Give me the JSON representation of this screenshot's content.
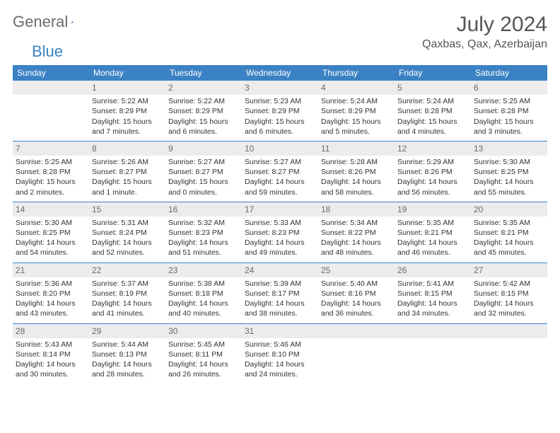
{
  "logo": {
    "general": "General",
    "blue": "Blue"
  },
  "title": "July 2024",
  "location": "Qaxbas, Qax, Azerbaijan",
  "colors": {
    "accent": "#3b82c4",
    "header_text": "#ffffff",
    "daynum_bg": "#ececec",
    "text": "#333333",
    "title_text": "#565656",
    "logo_gray": "#6b6b6b"
  },
  "day_headers": [
    "Sunday",
    "Monday",
    "Tuesday",
    "Wednesday",
    "Thursday",
    "Friday",
    "Saturday"
  ],
  "weeks": [
    [
      {
        "n": "",
        "lines": []
      },
      {
        "n": "1",
        "lines": [
          "Sunrise: 5:22 AM",
          "Sunset: 8:29 PM",
          "Daylight: 15 hours",
          "and 7 minutes."
        ]
      },
      {
        "n": "2",
        "lines": [
          "Sunrise: 5:22 AM",
          "Sunset: 8:29 PM",
          "Daylight: 15 hours",
          "and 6 minutes."
        ]
      },
      {
        "n": "3",
        "lines": [
          "Sunrise: 5:23 AM",
          "Sunset: 8:29 PM",
          "Daylight: 15 hours",
          "and 6 minutes."
        ]
      },
      {
        "n": "4",
        "lines": [
          "Sunrise: 5:24 AM",
          "Sunset: 8:29 PM",
          "Daylight: 15 hours",
          "and 5 minutes."
        ]
      },
      {
        "n": "5",
        "lines": [
          "Sunrise: 5:24 AM",
          "Sunset: 8:28 PM",
          "Daylight: 15 hours",
          "and 4 minutes."
        ]
      },
      {
        "n": "6",
        "lines": [
          "Sunrise: 5:25 AM",
          "Sunset: 8:28 PM",
          "Daylight: 15 hours",
          "and 3 minutes."
        ]
      }
    ],
    [
      {
        "n": "7",
        "lines": [
          "Sunrise: 5:25 AM",
          "Sunset: 8:28 PM",
          "Daylight: 15 hours",
          "and 2 minutes."
        ]
      },
      {
        "n": "8",
        "lines": [
          "Sunrise: 5:26 AM",
          "Sunset: 8:27 PM",
          "Daylight: 15 hours",
          "and 1 minute."
        ]
      },
      {
        "n": "9",
        "lines": [
          "Sunrise: 5:27 AM",
          "Sunset: 8:27 PM",
          "Daylight: 15 hours",
          "and 0 minutes."
        ]
      },
      {
        "n": "10",
        "lines": [
          "Sunrise: 5:27 AM",
          "Sunset: 8:27 PM",
          "Daylight: 14 hours",
          "and 59 minutes."
        ]
      },
      {
        "n": "11",
        "lines": [
          "Sunrise: 5:28 AM",
          "Sunset: 8:26 PM",
          "Daylight: 14 hours",
          "and 58 minutes."
        ]
      },
      {
        "n": "12",
        "lines": [
          "Sunrise: 5:29 AM",
          "Sunset: 8:26 PM",
          "Daylight: 14 hours",
          "and 56 minutes."
        ]
      },
      {
        "n": "13",
        "lines": [
          "Sunrise: 5:30 AM",
          "Sunset: 8:25 PM",
          "Daylight: 14 hours",
          "and 55 minutes."
        ]
      }
    ],
    [
      {
        "n": "14",
        "lines": [
          "Sunrise: 5:30 AM",
          "Sunset: 8:25 PM",
          "Daylight: 14 hours",
          "and 54 minutes."
        ]
      },
      {
        "n": "15",
        "lines": [
          "Sunrise: 5:31 AM",
          "Sunset: 8:24 PM",
          "Daylight: 14 hours",
          "and 52 minutes."
        ]
      },
      {
        "n": "16",
        "lines": [
          "Sunrise: 5:32 AM",
          "Sunset: 8:23 PM",
          "Daylight: 14 hours",
          "and 51 minutes."
        ]
      },
      {
        "n": "17",
        "lines": [
          "Sunrise: 5:33 AM",
          "Sunset: 8:23 PM",
          "Daylight: 14 hours",
          "and 49 minutes."
        ]
      },
      {
        "n": "18",
        "lines": [
          "Sunrise: 5:34 AM",
          "Sunset: 8:22 PM",
          "Daylight: 14 hours",
          "and 48 minutes."
        ]
      },
      {
        "n": "19",
        "lines": [
          "Sunrise: 5:35 AM",
          "Sunset: 8:21 PM",
          "Daylight: 14 hours",
          "and 46 minutes."
        ]
      },
      {
        "n": "20",
        "lines": [
          "Sunrise: 5:35 AM",
          "Sunset: 8:21 PM",
          "Daylight: 14 hours",
          "and 45 minutes."
        ]
      }
    ],
    [
      {
        "n": "21",
        "lines": [
          "Sunrise: 5:36 AM",
          "Sunset: 8:20 PM",
          "Daylight: 14 hours",
          "and 43 minutes."
        ]
      },
      {
        "n": "22",
        "lines": [
          "Sunrise: 5:37 AM",
          "Sunset: 8:19 PM",
          "Daylight: 14 hours",
          "and 41 minutes."
        ]
      },
      {
        "n": "23",
        "lines": [
          "Sunrise: 5:38 AM",
          "Sunset: 8:18 PM",
          "Daylight: 14 hours",
          "and 40 minutes."
        ]
      },
      {
        "n": "24",
        "lines": [
          "Sunrise: 5:39 AM",
          "Sunset: 8:17 PM",
          "Daylight: 14 hours",
          "and 38 minutes."
        ]
      },
      {
        "n": "25",
        "lines": [
          "Sunrise: 5:40 AM",
          "Sunset: 8:16 PM",
          "Daylight: 14 hours",
          "and 36 minutes."
        ]
      },
      {
        "n": "26",
        "lines": [
          "Sunrise: 5:41 AM",
          "Sunset: 8:15 PM",
          "Daylight: 14 hours",
          "and 34 minutes."
        ]
      },
      {
        "n": "27",
        "lines": [
          "Sunrise: 5:42 AM",
          "Sunset: 8:15 PM",
          "Daylight: 14 hours",
          "and 32 minutes."
        ]
      }
    ],
    [
      {
        "n": "28",
        "lines": [
          "Sunrise: 5:43 AM",
          "Sunset: 8:14 PM",
          "Daylight: 14 hours",
          "and 30 minutes."
        ]
      },
      {
        "n": "29",
        "lines": [
          "Sunrise: 5:44 AM",
          "Sunset: 8:13 PM",
          "Daylight: 14 hours",
          "and 28 minutes."
        ]
      },
      {
        "n": "30",
        "lines": [
          "Sunrise: 5:45 AM",
          "Sunset: 8:11 PM",
          "Daylight: 14 hours",
          "and 26 minutes."
        ]
      },
      {
        "n": "31",
        "lines": [
          "Sunrise: 5:46 AM",
          "Sunset: 8:10 PM",
          "Daylight: 14 hours",
          "and 24 minutes."
        ]
      },
      {
        "n": "",
        "lines": []
      },
      {
        "n": "",
        "lines": []
      },
      {
        "n": "",
        "lines": []
      }
    ]
  ]
}
